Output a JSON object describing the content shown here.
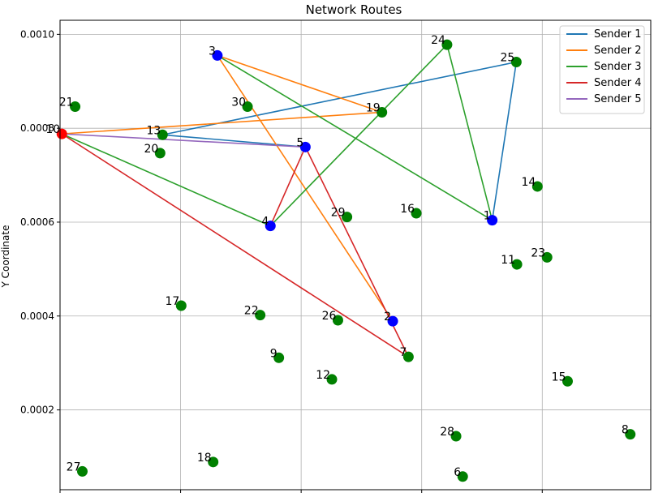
{
  "chart_data": {
    "type": "scatter",
    "title": "Network Routes",
    "xlabel": "",
    "ylabel": "Y Coordinate",
    "xlim": [
      0.0,
      0.00098
    ],
    "ylim": [
      3e-05,
      0.00103
    ],
    "x_ticks": [
      0.0,
      0.0002,
      0.0004,
      0.0006,
      0.0008
    ],
    "y_ticks": [
      0.0002,
      0.0004,
      0.0006,
      0.0008,
      0.001
    ],
    "y_tick_labels": [
      "0.0002",
      "0.0004",
      "0.0006",
      "0.0008",
      "0.0010"
    ],
    "grid": true,
    "legend_position": "top-right",
    "nodes": [
      {
        "id": "1",
        "x": 0.000717,
        "y": 0.000604,
        "color": "#0000ff"
      },
      {
        "id": "2",
        "x": 0.000552,
        "y": 0.000389,
        "color": "#0000ff"
      },
      {
        "id": "3",
        "x": 0.000261,
        "y": 0.000955,
        "color": "#0000ff"
      },
      {
        "id": "4",
        "x": 0.000349,
        "y": 0.000592,
        "color": "#0000ff"
      },
      {
        "id": "5",
        "x": 0.000407,
        "y": 0.00076,
        "color": "#0000ff"
      },
      {
        "id": "6",
        "x": 0.000668,
        "y": 5.8e-05,
        "color": "#008000"
      },
      {
        "id": "7",
        "x": 0.000578,
        "y": 0.000313,
        "color": "#008000"
      },
      {
        "id": "8",
        "x": 0.000946,
        "y": 0.000148,
        "color": "#008000"
      },
      {
        "id": "9",
        "x": 0.000363,
        "y": 0.000311,
        "color": "#008000"
      },
      {
        "id": "10",
        "x": 3e-06,
        "y": 0.000788,
        "color": "#ff0000"
      },
      {
        "id": "11",
        "x": 0.000758,
        "y": 0.00051,
        "color": "#008000"
      },
      {
        "id": "12",
        "x": 0.000451,
        "y": 0.000265,
        "color": "#008000"
      },
      {
        "id": "13",
        "x": 0.00017,
        "y": 0.000786,
        "color": "#008000"
      },
      {
        "id": "14",
        "x": 0.000792,
        "y": 0.000676,
        "color": "#008000"
      },
      {
        "id": "15",
        "x": 0.000842,
        "y": 0.000261,
        "color": "#008000"
      },
      {
        "id": "16",
        "x": 0.000591,
        "y": 0.000619,
        "color": "#008000"
      },
      {
        "id": "17",
        "x": 0.000201,
        "y": 0.000422,
        "color": "#008000"
      },
      {
        "id": "18",
        "x": 0.000254,
        "y": 8.9e-05,
        "color": "#008000"
      },
      {
        "id": "19",
        "x": 0.000534,
        "y": 0.000834,
        "color": "#008000"
      },
      {
        "id": "20",
        "x": 0.000166,
        "y": 0.000747,
        "color": "#008000"
      },
      {
        "id": "21",
        "x": 2.5e-05,
        "y": 0.000846,
        "color": "#008000"
      },
      {
        "id": "22",
        "x": 0.000332,
        "y": 0.000402,
        "color": "#008000"
      },
      {
        "id": "23",
        "x": 0.000808,
        "y": 0.000525,
        "color": "#008000"
      },
      {
        "id": "24",
        "x": 0.000642,
        "y": 0.000978,
        "color": "#008000"
      },
      {
        "id": "25",
        "x": 0.000757,
        "y": 0.000941,
        "color": "#008000"
      },
      {
        "id": "26",
        "x": 0.000461,
        "y": 0.000391,
        "color": "#008000"
      },
      {
        "id": "27",
        "x": 3.7e-05,
        "y": 6.9e-05,
        "color": "#008000"
      },
      {
        "id": "28",
        "x": 0.000657,
        "y": 0.000144,
        "color": "#008000"
      },
      {
        "id": "29",
        "x": 0.000476,
        "y": 0.000611,
        "color": "#008000"
      },
      {
        "id": "30",
        "x": 0.000311,
        "y": 0.000846,
        "color": "#008000"
      }
    ],
    "series": [
      {
        "name": "Sender 1",
        "color": "#1f77b4",
        "route": [
          "1",
          "25",
          "13",
          "5"
        ]
      },
      {
        "name": "Sender 2",
        "color": "#ff7f0e",
        "route": [
          "10",
          "19",
          "3",
          "2"
        ]
      },
      {
        "name": "Sender 3",
        "color": "#2ca02c",
        "route": [
          "10",
          "4",
          "24",
          "1",
          "3"
        ]
      },
      {
        "name": "Sender 4",
        "color": "#d62728",
        "route": [
          "10",
          "7",
          "5",
          "4"
        ]
      },
      {
        "name": "Sender 5",
        "color": "#9467bd",
        "route": [
          "10",
          "5"
        ]
      }
    ]
  }
}
